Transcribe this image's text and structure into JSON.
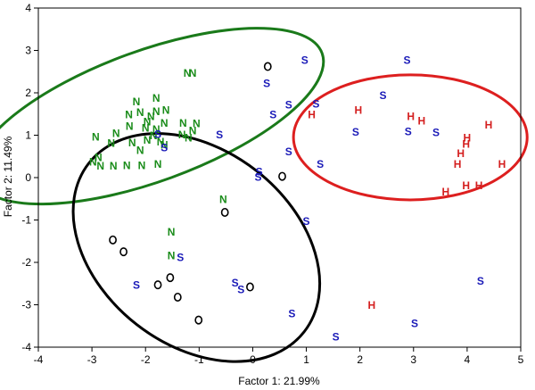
{
  "chart_data": {
    "type": "scatter",
    "xlabel": "Factor 1: 21.99%",
    "ylabel": "Factor 2: 11.49%",
    "xlim": [
      -4,
      5
    ],
    "ylim": [
      -4,
      4
    ],
    "xticks": [
      -4,
      -3,
      -2,
      -1,
      0,
      1,
      2,
      3,
      4,
      5
    ],
    "yticks": [
      -4,
      -3,
      -2,
      -1,
      0,
      1,
      2,
      3,
      4
    ],
    "grid": false,
    "colors": {
      "N": "#1a8c1a",
      "S": "#1a1ab8",
      "H": "#d41f1f",
      "O": "#000000"
    },
    "series": [
      {
        "marker": "N",
        "points": [
          [
            -1.22,
            2.47
          ],
          [
            -1.12,
            2.47
          ],
          [
            -2.17,
            1.8
          ],
          [
            -1.8,
            1.88
          ],
          [
            -1.62,
            1.6
          ],
          [
            -1.8,
            1.57
          ],
          [
            -2.31,
            1.5
          ],
          [
            -2.1,
            1.55
          ],
          [
            -1.9,
            1.45
          ],
          [
            -1.97,
            1.33
          ],
          [
            -1.65,
            1.3
          ],
          [
            -1.3,
            1.3
          ],
          [
            -1.05,
            1.28
          ],
          [
            -2.3,
            1.22
          ],
          [
            -2.0,
            1.18
          ],
          [
            -1.8,
            1.15
          ],
          [
            -2.55,
            1.05
          ],
          [
            -1.85,
            1.0
          ],
          [
            -1.97,
            0.9
          ],
          [
            -1.72,
            0.85
          ],
          [
            -1.2,
            0.95
          ],
          [
            -2.93,
            0.97
          ],
          [
            -2.64,
            0.82
          ],
          [
            -2.25,
            0.83
          ],
          [
            -1.65,
            0.78
          ],
          [
            -2.1,
            0.65
          ],
          [
            -2.88,
            0.48
          ],
          [
            -2.98,
            0.38
          ],
          [
            -2.84,
            0.28
          ],
          [
            -2.6,
            0.28
          ],
          [
            -2.35,
            0.3
          ],
          [
            -2.07,
            0.3
          ],
          [
            -1.77,
            0.33
          ],
          [
            -1.32,
            1.02
          ],
          [
            -1.12,
            1.12
          ],
          [
            -0.55,
            -0.5
          ],
          [
            -1.52,
            -1.27
          ],
          [
            -1.52,
            -1.83
          ]
        ]
      },
      {
        "marker": "S",
        "points": [
          [
            0.97,
            2.78
          ],
          [
            2.88,
            2.78
          ],
          [
            0.26,
            2.23
          ],
          [
            0.67,
            1.73
          ],
          [
            1.18,
            1.75
          ],
          [
            2.43,
            1.95
          ],
          [
            0.38,
            1.5
          ],
          [
            1.92,
            1.08
          ],
          [
            2.9,
            1.1
          ],
          [
            3.42,
            1.07
          ],
          [
            -0.62,
            1.02
          ],
          [
            -1.77,
            1.03
          ],
          [
            -1.65,
            0.72
          ],
          [
            0.67,
            0.62
          ],
          [
            1.26,
            0.33
          ],
          [
            0.12,
            0.15
          ],
          [
            0.1,
            0.02
          ],
          [
            1.0,
            -1.02
          ],
          [
            4.25,
            -2.43
          ],
          [
            -1.35,
            -1.87
          ],
          [
            -2.17,
            -2.53
          ],
          [
            -0.33,
            -2.47
          ],
          [
            -0.22,
            -2.63
          ],
          [
            0.73,
            -3.2
          ],
          [
            3.02,
            -3.43
          ],
          [
            1.55,
            -3.75
          ]
        ]
      },
      {
        "marker": "H",
        "points": [
          [
            1.1,
            1.5
          ],
          [
            1.97,
            1.6
          ],
          [
            2.95,
            1.45
          ],
          [
            3.15,
            1.35
          ],
          [
            4.4,
            1.25
          ],
          [
            4.0,
            0.95
          ],
          [
            3.98,
            0.8
          ],
          [
            3.88,
            0.58
          ],
          [
            3.82,
            0.33
          ],
          [
            4.65,
            0.33
          ],
          [
            3.98,
            -0.18
          ],
          [
            4.22,
            -0.18
          ],
          [
            3.6,
            -0.33
          ],
          [
            2.22,
            -3.0
          ]
        ]
      },
      {
        "marker": "O",
        "points": [
          [
            0.28,
            2.62
          ],
          [
            0.55,
            0.03
          ],
          [
            -0.52,
            -0.82
          ],
          [
            -2.61,
            -1.47
          ],
          [
            -2.41,
            -1.75
          ],
          [
            -1.54,
            -2.36
          ],
          [
            -1.77,
            -2.53
          ],
          [
            -0.05,
            -2.58
          ],
          [
            -1.4,
            -2.82
          ],
          [
            -1.01,
            -3.36
          ]
        ]
      }
    ],
    "ellipses": [
      {
        "group": "N",
        "color": "#1a7a1a",
        "cx": -1.93,
        "cy": 1.45,
        "rx": 3.43,
        "ry": 3.08,
        "rotation_deg": 20
      },
      {
        "group": "H",
        "color": "#dd1f1f",
        "cx": 2.94,
        "cy": 0.95,
        "rx": 2.18,
        "ry": 2.95,
        "rotation_deg": 0
      },
      {
        "group": "O",
        "color": "#000000",
        "cx": -1.05,
        "cy": -1.65,
        "rx": 2.55,
        "ry": 4.6,
        "rotation_deg": -38
      }
    ]
  }
}
